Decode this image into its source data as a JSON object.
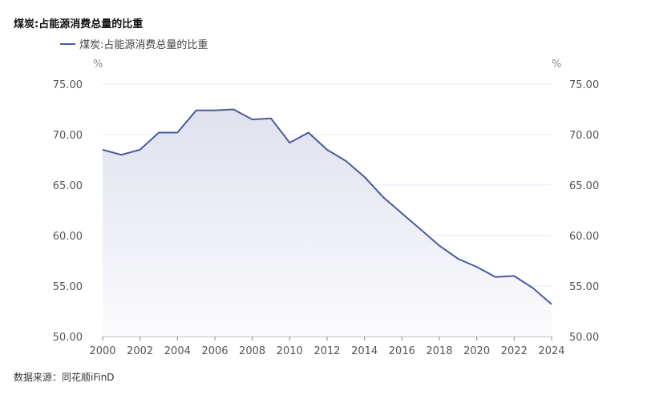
{
  "title": "煤炭:占能源消费总量的比重",
  "source": "数据来源：同花顺iFinD",
  "colors": {
    "line": "#4a5aa0",
    "grid": "#e6e8f5",
    "axis_text": "#555555"
  },
  "chart_data": {
    "type": "area",
    "title": "煤炭:占能源消费总量的比重",
    "legend": {
      "position": "top-left",
      "entries": [
        "煤炭:占能源消费总量的比重"
      ]
    },
    "y_unit_left": "%",
    "y_unit_right": "%",
    "ylim": [
      50,
      75
    ],
    "yticks": [
      "50.00",
      "55.00",
      "60.00",
      "65.00",
      "70.00",
      "75.00"
    ],
    "xticks": [
      "2000",
      "2002",
      "2004",
      "2006",
      "2008",
      "2010",
      "2012",
      "2014",
      "2016",
      "2018",
      "2020",
      "2022",
      "2024"
    ],
    "grid": true,
    "x": [
      2000,
      2001,
      2002,
      2003,
      2004,
      2005,
      2006,
      2007,
      2008,
      2009,
      2010,
      2011,
      2012,
      2013,
      2014,
      2015,
      2016,
      2017,
      2018,
      2019,
      2020,
      2021,
      2022,
      2023,
      2024
    ],
    "series": [
      {
        "name": "煤炭:占能源消费总量的比重",
        "values": [
          68.5,
          68.0,
          68.5,
          70.2,
          70.2,
          72.4,
          72.4,
          72.5,
          71.5,
          71.6,
          69.2,
          70.2,
          68.5,
          67.4,
          65.8,
          63.8,
          62.2,
          60.6,
          59.0,
          57.7,
          56.9,
          55.9,
          56.0,
          54.8,
          53.2
        ]
      }
    ]
  }
}
